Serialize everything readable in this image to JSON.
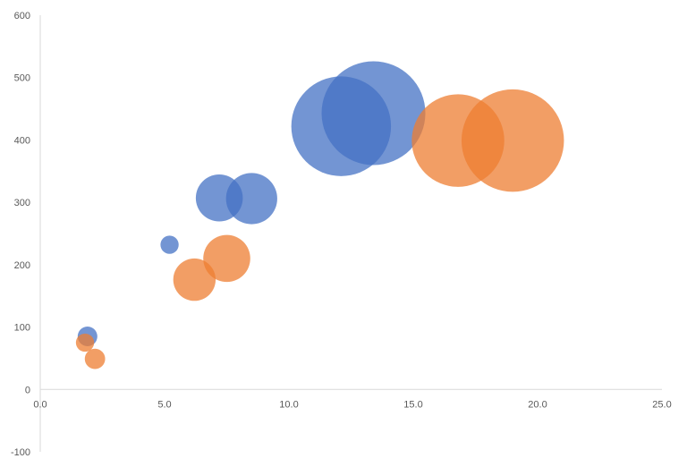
{
  "chart_data": {
    "type": "bubble",
    "title": "",
    "xlabel": "",
    "ylabel": "",
    "xlim": [
      0,
      25
    ],
    "ylim": [
      -100,
      600
    ],
    "x_ticks": [
      "0.0",
      "5.0",
      "10.0",
      "15.0",
      "20.0",
      "25.0"
    ],
    "y_ticks": [
      "-100",
      "0",
      "100",
      "200",
      "300",
      "400",
      "500",
      "600"
    ],
    "x_tick_values": [
      0,
      5,
      10,
      15,
      20,
      25
    ],
    "y_tick_values": [
      -100,
      0,
      100,
      200,
      300,
      400,
      500,
      600
    ],
    "grid": false,
    "legend": "none",
    "series": [
      {
        "color": "#4472C4",
        "points": [
          {
            "x": 1.9,
            "y": 85,
            "size": 1.4
          },
          {
            "x": 5.2,
            "y": 232,
            "size": 1.2
          },
          {
            "x": 7.2,
            "y": 307,
            "size": 8
          },
          {
            "x": 8.5,
            "y": 306,
            "size": 9.5
          },
          {
            "x": 12.1,
            "y": 422,
            "size": 36
          },
          {
            "x": 13.4,
            "y": 443,
            "size": 39
          }
        ]
      },
      {
        "color": "#ED7D31",
        "points": [
          {
            "x": 1.8,
            "y": 75,
            "size": 1.2
          },
          {
            "x": 2.2,
            "y": 49,
            "size": 1.5
          },
          {
            "x": 6.2,
            "y": 176,
            "size": 6.5
          },
          {
            "x": 7.5,
            "y": 210,
            "size": 8
          },
          {
            "x": 16.8,
            "y": 399,
            "size": 31
          },
          {
            "x": 19.0,
            "y": 399,
            "size": 38
          }
        ]
      }
    ]
  }
}
